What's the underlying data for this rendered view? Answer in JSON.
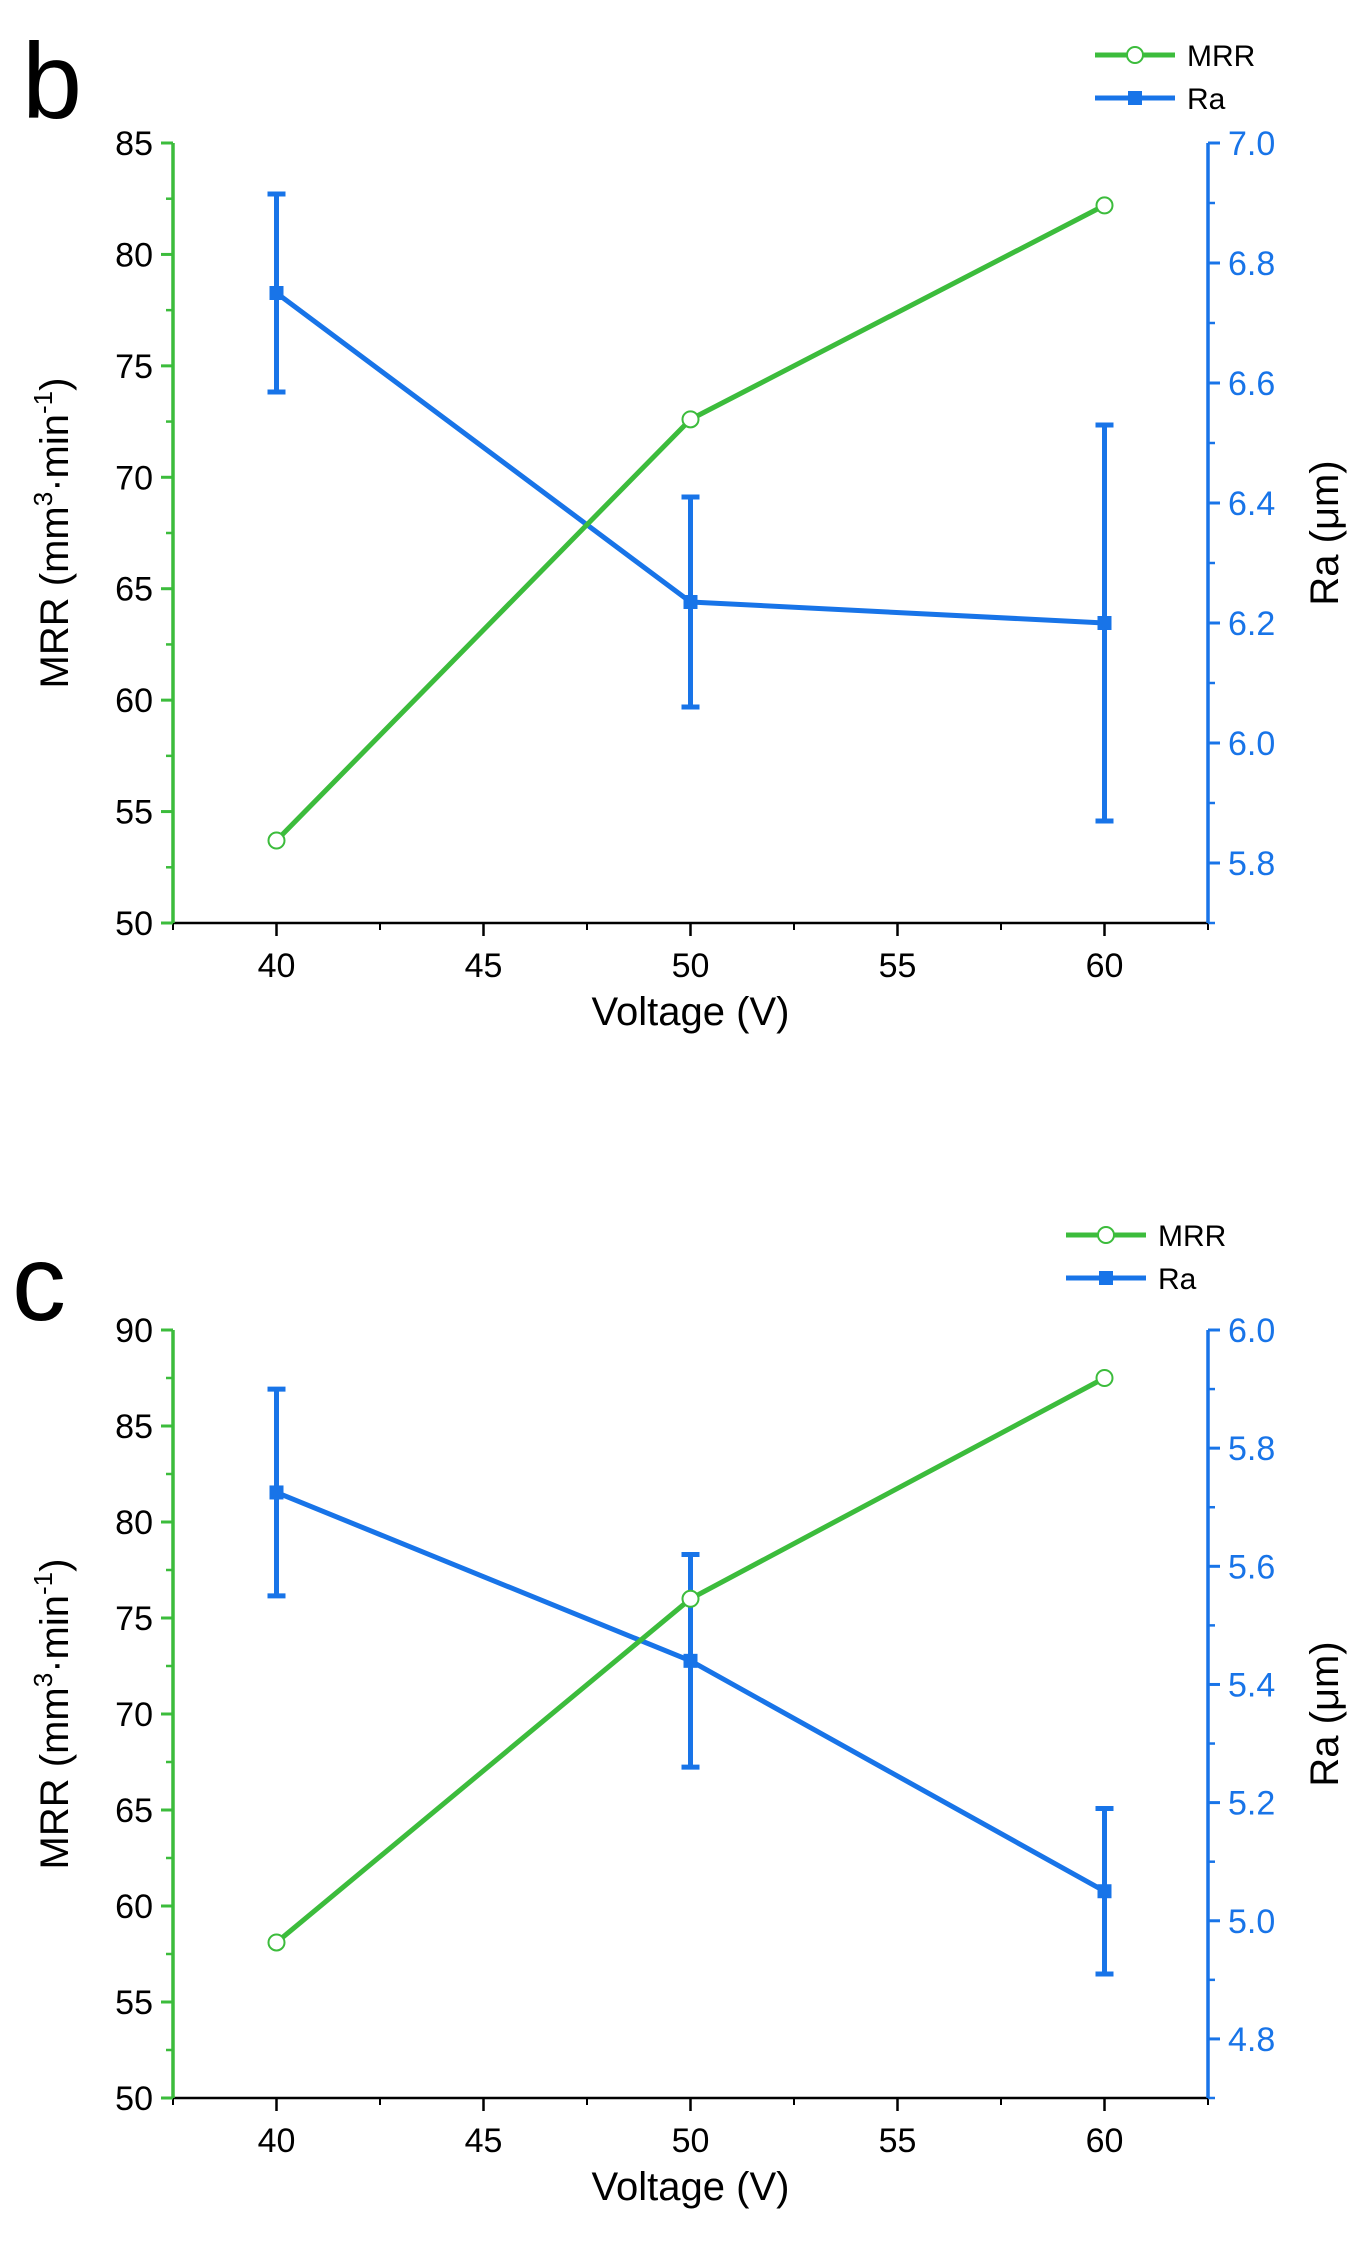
{
  "colors": {
    "mrr": "#3cbc3c",
    "ra": "#1874e8",
    "text": "#000000"
  },
  "chart_data": [
    {
      "panel": "b",
      "type": "line",
      "xlabel": "Voltage (V)",
      "ylabel_left": "MRR (mm³·min⁻¹)",
      "ylabel_left_parts": {
        "pre": "MRR (mm",
        "sup1": "3",
        "mid": "·min",
        "sup2": "-1",
        "post": ")"
      },
      "ylabel_right": "Ra (μm)",
      "xlim": [
        37.5,
        62.5
      ],
      "xticks": [
        40,
        45,
        50,
        55,
        60
      ],
      "ylim_left": [
        50,
        85
      ],
      "yticks_left": [
        50,
        55,
        60,
        65,
        70,
        75,
        80,
        85
      ],
      "ylim_right": [
        5.7,
        7.0
      ],
      "yticks_right": [
        "5.8",
        "6.0",
        "6.2",
        "6.4",
        "6.6",
        "6.8",
        "7.0"
      ],
      "legend": [
        "MRR",
        "Ra"
      ],
      "legend_position": "top-right",
      "x": [
        40,
        50,
        60
      ],
      "series": [
        {
          "name": "MRR",
          "axis": "left",
          "marker": "open-circle",
          "values": [
            53.7,
            72.6,
            82.2
          ]
        },
        {
          "name": "Ra",
          "axis": "right",
          "marker": "square",
          "values": [
            6.75,
            6.235,
            6.2
          ],
          "errors": [
            0.165,
            0.175,
            0.33
          ]
        }
      ]
    },
    {
      "panel": "c",
      "type": "line",
      "xlabel": "Voltage (V)",
      "ylabel_left": "MRR (mm³·min⁻¹)",
      "ylabel_left_parts": {
        "pre": "MRR (mm",
        "sup1": "3",
        "mid": "·min",
        "sup2": "-1",
        "post": ")"
      },
      "ylabel_right": "Ra (μm)",
      "xlim": [
        37.5,
        62.5
      ],
      "xticks": [
        40,
        45,
        50,
        55,
        60
      ],
      "ylim_left": [
        50,
        90
      ],
      "yticks_left": [
        50,
        55,
        60,
        65,
        70,
        75,
        80,
        85,
        90
      ],
      "ylim_right": [
        4.7,
        6.0
      ],
      "yticks_right": [
        "4.8",
        "5.0",
        "5.2",
        "5.4",
        "5.6",
        "5.8",
        "6.0"
      ],
      "legend": [
        "MRR",
        "Ra"
      ],
      "legend_position": "top-right",
      "x": [
        40,
        50,
        60
      ],
      "series": [
        {
          "name": "MRR",
          "axis": "left",
          "marker": "open-circle",
          "values": [
            58.1,
            76.0,
            87.5
          ]
        },
        {
          "name": "Ra",
          "axis": "right",
          "marker": "square",
          "values": [
            5.725,
            5.44,
            5.05
          ],
          "errors": [
            0.175,
            0.18,
            0.14
          ]
        }
      ]
    }
  ]
}
